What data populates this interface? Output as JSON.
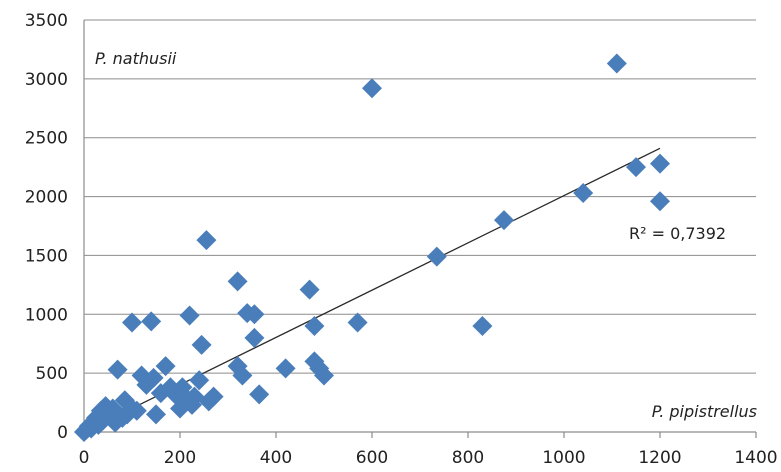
{
  "chart_data": {
    "type": "scatter",
    "title": "",
    "xlabel": "P. pipistrellus",
    "ylabel": "P. nathusii",
    "xlim": [
      0,
      1400
    ],
    "ylim": [
      0,
      3500
    ],
    "x_ticks": [
      "0",
      "200",
      "400",
      "600",
      "800",
      "1000",
      "1200",
      "1400"
    ],
    "y_ticks": [
      "0",
      "500",
      "1000",
      "1500",
      "2000",
      "2500",
      "3000",
      "3500"
    ],
    "grid": "horizontal",
    "legend": "none",
    "series_color": "#4a7ebb",
    "trendline": {
      "type": "linear",
      "x": [
        0,
        1200
      ],
      "y": [
        0,
        2410
      ],
      "label": "R² = 0,7392"
    },
    "points": [
      {
        "x": 0,
        "y": 0
      },
      {
        "x": 5,
        "y": 20
      },
      {
        "x": 10,
        "y": 50
      },
      {
        "x": 15,
        "y": 30
      },
      {
        "x": 20,
        "y": 80
      },
      {
        "x": 25,
        "y": 120
      },
      {
        "x": 30,
        "y": 60
      },
      {
        "x": 35,
        "y": 180
      },
      {
        "x": 40,
        "y": 100
      },
      {
        "x": 45,
        "y": 220
      },
      {
        "x": 50,
        "y": 150
      },
      {
        "x": 60,
        "y": 200
      },
      {
        "x": 65,
        "y": 80
      },
      {
        "x": 70,
        "y": 530
      },
      {
        "x": 80,
        "y": 120
      },
      {
        "x": 85,
        "y": 270
      },
      {
        "x": 90,
        "y": 150
      },
      {
        "x": 100,
        "y": 930
      },
      {
        "x": 100,
        "y": 200
      },
      {
        "x": 110,
        "y": 180
      },
      {
        "x": 120,
        "y": 480
      },
      {
        "x": 130,
        "y": 400
      },
      {
        "x": 140,
        "y": 940
      },
      {
        "x": 145,
        "y": 460
      },
      {
        "x": 150,
        "y": 150
      },
      {
        "x": 160,
        "y": 330
      },
      {
        "x": 170,
        "y": 560
      },
      {
        "x": 180,
        "y": 380
      },
      {
        "x": 190,
        "y": 320
      },
      {
        "x": 200,
        "y": 200
      },
      {
        "x": 205,
        "y": 380
      },
      {
        "x": 210,
        "y": 300
      },
      {
        "x": 220,
        "y": 990
      },
      {
        "x": 225,
        "y": 230
      },
      {
        "x": 230,
        "y": 300
      },
      {
        "x": 240,
        "y": 440
      },
      {
        "x": 245,
        "y": 740
      },
      {
        "x": 255,
        "y": 1630
      },
      {
        "x": 260,
        "y": 260
      },
      {
        "x": 270,
        "y": 300
      },
      {
        "x": 320,
        "y": 1280
      },
      {
        "x": 320,
        "y": 560
      },
      {
        "x": 330,
        "y": 480
      },
      {
        "x": 340,
        "y": 1010
      },
      {
        "x": 355,
        "y": 1000
      },
      {
        "x": 355,
        "y": 800
      },
      {
        "x": 365,
        "y": 320
      },
      {
        "x": 420,
        "y": 540
      },
      {
        "x": 470,
        "y": 1210
      },
      {
        "x": 480,
        "y": 900
      },
      {
        "x": 480,
        "y": 600
      },
      {
        "x": 490,
        "y": 540
      },
      {
        "x": 500,
        "y": 480
      },
      {
        "x": 570,
        "y": 930
      },
      {
        "x": 600,
        "y": 2920
      },
      {
        "x": 735,
        "y": 1490
      },
      {
        "x": 830,
        "y": 900
      },
      {
        "x": 875,
        "y": 1800
      },
      {
        "x": 1040,
        "y": 2030
      },
      {
        "x": 1110,
        "y": 3130
      },
      {
        "x": 1150,
        "y": 2250
      },
      {
        "x": 1200,
        "y": 2280
      },
      {
        "x": 1200,
        "y": 1960
      }
    ]
  }
}
